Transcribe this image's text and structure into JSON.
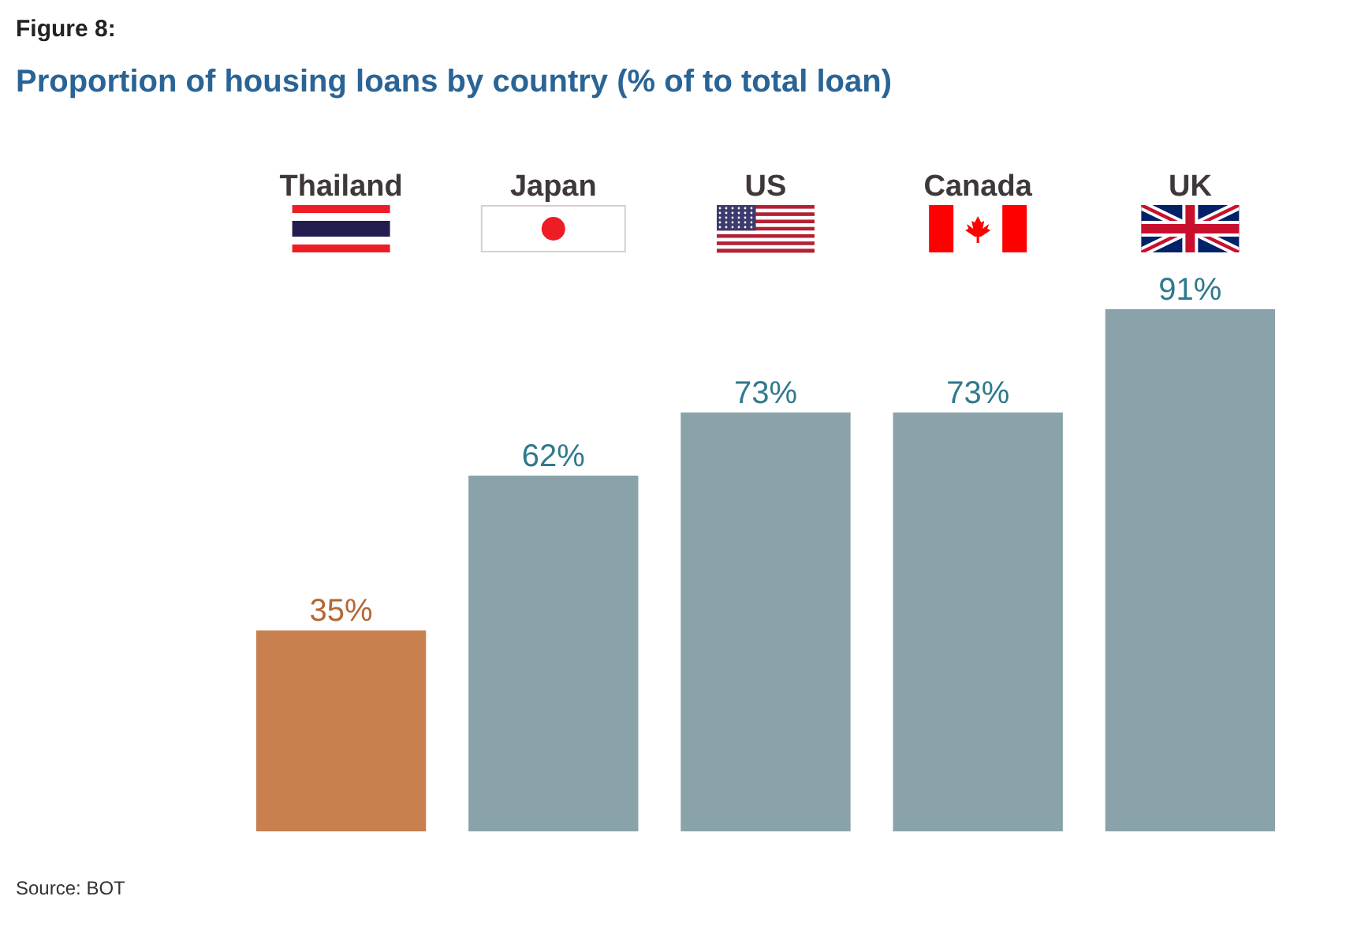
{
  "chart_data": {
    "type": "bar",
    "title": "Proportion of housing loans by country (% of to total loan)",
    "annotations": [
      "Figure 8:",
      "Source: BOT"
    ],
    "categories": [
      "Thailand",
      "Japan",
      "US",
      "Canada",
      "UK"
    ],
    "values": [
      35,
      62,
      73,
      73,
      91
    ],
    "value_labels": [
      "35%",
      "62%",
      "73%",
      "73%",
      "91%"
    ],
    "colors": [
      "#c8804f",
      "#8aa3aa",
      "#8aa3aa",
      "#8aa3aa",
      "#8aa3aa"
    ]
  }
}
